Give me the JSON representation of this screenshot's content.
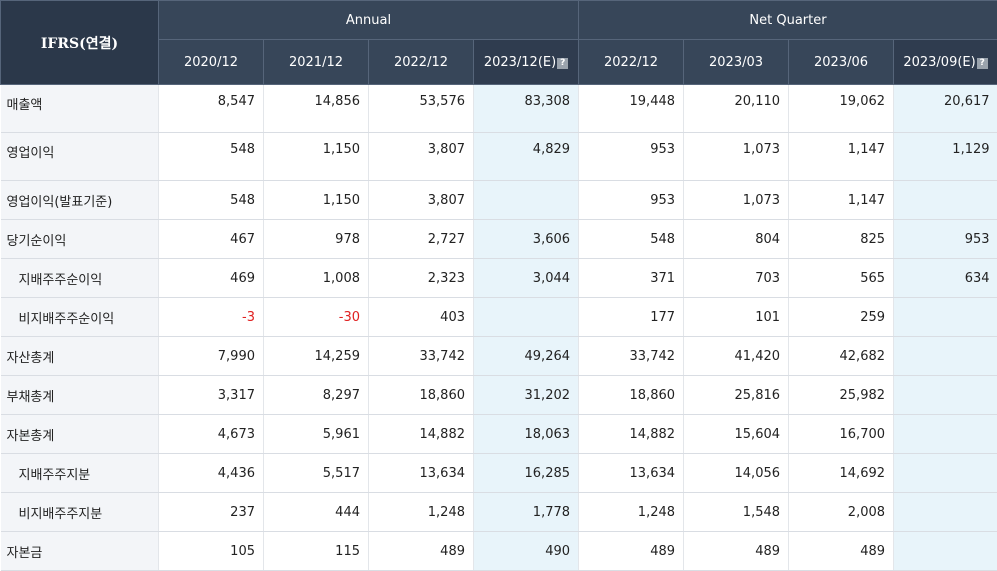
{
  "header": {
    "corner": "IFRS(연결)",
    "group_annual": "Annual",
    "group_quarter": "Net Quarter",
    "periods": [
      {
        "label": "2020/12",
        "est": false
      },
      {
        "label": "2021/12",
        "est": false
      },
      {
        "label": "2022/12",
        "est": false
      },
      {
        "label": "2023/12(E)",
        "est": true
      },
      {
        "label": "2022/12",
        "est": false
      },
      {
        "label": "2023/03",
        "est": false
      },
      {
        "label": "2023/06",
        "est": false
      },
      {
        "label": "2023/09(E)",
        "est": true
      }
    ]
  },
  "rows": [
    {
      "label": "매출액",
      "sub": false,
      "top": true,
      "values": [
        "8,547",
        "14,856",
        "53,576",
        "83,308",
        "19,448",
        "20,110",
        "19,062",
        "20,617"
      ]
    },
    {
      "label": "영업이익",
      "sub": false,
      "top": true,
      "values": [
        "548",
        "1,150",
        "3,807",
        "4,829",
        "953",
        "1,073",
        "1,147",
        "1,129"
      ]
    },
    {
      "label": "영업이익(발표기준)",
      "sub": false,
      "top": false,
      "values": [
        "548",
        "1,150",
        "3,807",
        "",
        "953",
        "1,073",
        "1,147",
        ""
      ]
    },
    {
      "label": "당기순이익",
      "sub": false,
      "top": false,
      "values": [
        "467",
        "978",
        "2,727",
        "3,606",
        "548",
        "804",
        "825",
        "953"
      ]
    },
    {
      "label": "지배주주순이익",
      "sub": true,
      "top": false,
      "values": [
        "469",
        "1,008",
        "2,323",
        "3,044",
        "371",
        "703",
        "565",
        "634"
      ]
    },
    {
      "label": "비지배주주순이익",
      "sub": true,
      "top": false,
      "values": [
        "-3",
        "-30",
        "403",
        "",
        "177",
        "101",
        "259",
        ""
      ]
    },
    {
      "label": "자산총계",
      "sub": false,
      "top": false,
      "values": [
        "7,990",
        "14,259",
        "33,742",
        "49,264",
        "33,742",
        "41,420",
        "42,682",
        ""
      ]
    },
    {
      "label": "부채총계",
      "sub": false,
      "top": false,
      "values": [
        "3,317",
        "8,297",
        "18,860",
        "31,202",
        "18,860",
        "25,816",
        "25,982",
        ""
      ]
    },
    {
      "label": "자본총계",
      "sub": false,
      "top": false,
      "values": [
        "4,673",
        "5,961",
        "14,882",
        "18,063",
        "14,882",
        "15,604",
        "16,700",
        ""
      ]
    },
    {
      "label": "지배주주지분",
      "sub": true,
      "top": false,
      "values": [
        "4,436",
        "5,517",
        "13,634",
        "16,285",
        "13,634",
        "14,056",
        "14,692",
        ""
      ]
    },
    {
      "label": "비지배주주지분",
      "sub": true,
      "top": false,
      "values": [
        "237",
        "444",
        "1,248",
        "1,778",
        "1,248",
        "1,548",
        "2,008",
        ""
      ]
    },
    {
      "label": "자본금",
      "sub": false,
      "top": false,
      "values": [
        "105",
        "115",
        "489",
        "490",
        "489",
        "489",
        "489",
        ""
      ]
    }
  ],
  "colors": {
    "header_bg": "#374659",
    "label_bg": "#f3f5f8",
    "estimate_bg": "#e8f4fa",
    "negative": "#e02020"
  },
  "icons": {
    "estimate_help": "help-icon"
  }
}
